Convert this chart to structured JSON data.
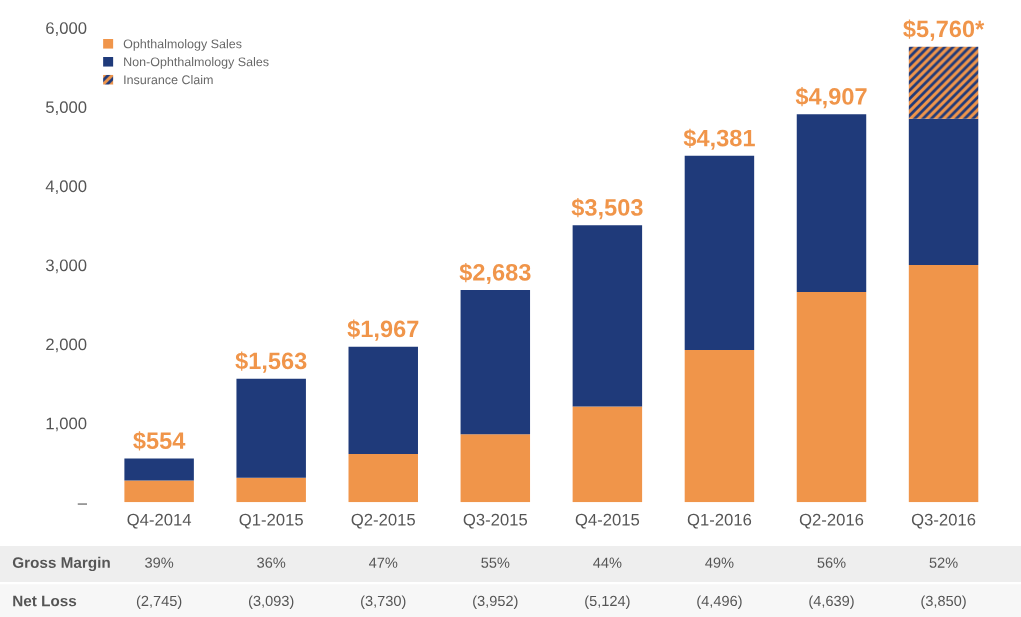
{
  "chart_data": {
    "type": "bar",
    "stacked": true,
    "categories": [
      "Q4-2014",
      "Q1-2015",
      "Q2-2015",
      "Q3-2015",
      "Q4-2015",
      "Q1-2016",
      "Q2-2016",
      "Q3-2016"
    ],
    "series": [
      {
        "name": "Ophthalmology Sales",
        "color": "#f0954a",
        "values": [
          275,
          310,
          610,
          860,
          1210,
          1925,
          2660,
          3000
        ]
      },
      {
        "name": "Non-Ophthalmology Sales",
        "color": "#1f3a7a",
        "values": [
          279,
          1253,
          1357,
          1823,
          2293,
          2456,
          2247,
          1850
        ]
      },
      {
        "name": "Insurance Claim",
        "color": "#f0954a",
        "values": [
          null,
          null,
          null,
          null,
          null,
          null,
          null,
          910
        ]
      }
    ],
    "totals": [
      "$554",
      "$1,563",
      "$1,967",
      "$2,683",
      "$3,503",
      "$4,381",
      "$4,907",
      "$5,760*"
    ],
    "ylim": [
      0,
      6000
    ],
    "yticks": [
      {
        "value": 0,
        "label": "–"
      },
      {
        "value": 1000,
        "label": "1,000"
      },
      {
        "value": 2000,
        "label": "2,000"
      },
      {
        "value": 3000,
        "label": "3,000"
      },
      {
        "value": 4000,
        "label": "4,000"
      },
      {
        "value": 5000,
        "label": "5,000"
      },
      {
        "value": 6000,
        "label": "6,000"
      }
    ],
    "grid": false,
    "legend": "top left",
    "annotations": [
      "Gross Margin",
      "39%",
      "36%",
      "47%",
      "55%",
      "44%",
      "49%",
      "56%",
      "52%",
      "Net Loss",
      "(2,745)",
      "(3,093)",
      "(3,730)",
      "(3,952)",
      "(5,124)",
      "(4,496)",
      "(4,639)",
      "(3,850)"
    ]
  }
}
